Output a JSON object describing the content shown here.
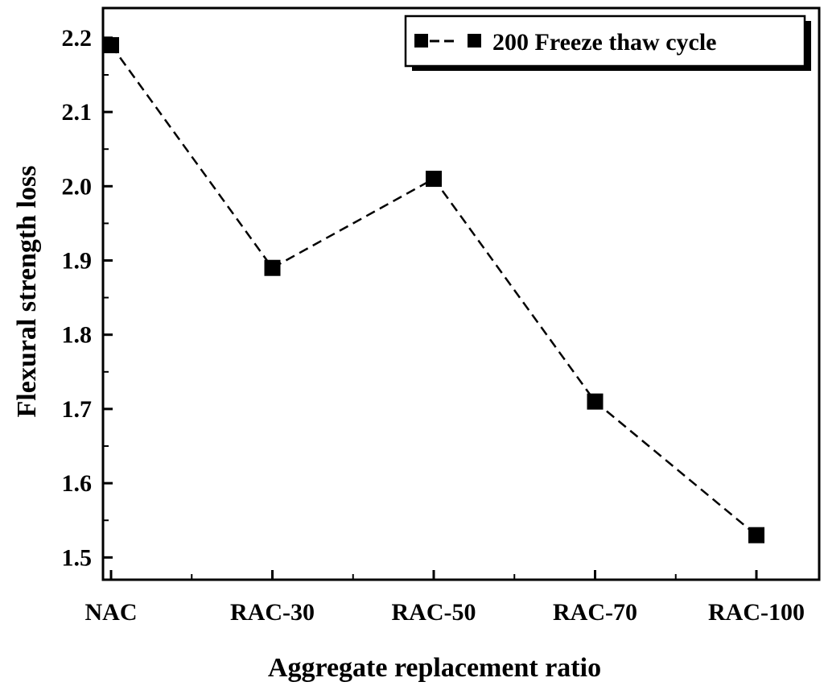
{
  "chart_data": {
    "type": "line",
    "categories": [
      "NAC",
      "RAC-30",
      "RAC-50",
      "RAC-70",
      "RAC-100"
    ],
    "series": [
      {
        "name": "200 Freeze thaw cycle",
        "values": [
          2.19,
          1.89,
          2.01,
          1.71,
          1.53
        ]
      }
    ],
    "xlabel": "Aggregate replacement ratio",
    "ylabel": "Flexural strength loss",
    "ylim": [
      1.47,
      2.24
    ],
    "yticks": [
      1.5,
      1.6,
      1.7,
      1.8,
      1.9,
      2.0,
      2.1,
      2.2
    ],
    "ytick_labels": [
      "1.5",
      "1.6",
      "1.7",
      "1.8",
      "1.9",
      "2.0",
      "2.1",
      "2.2"
    ],
    "grid": false,
    "legend_position": "top-right",
    "line_style": "dashed",
    "marker": "square",
    "colors": {
      "series": "#000000",
      "background": "#ffffff"
    }
  }
}
